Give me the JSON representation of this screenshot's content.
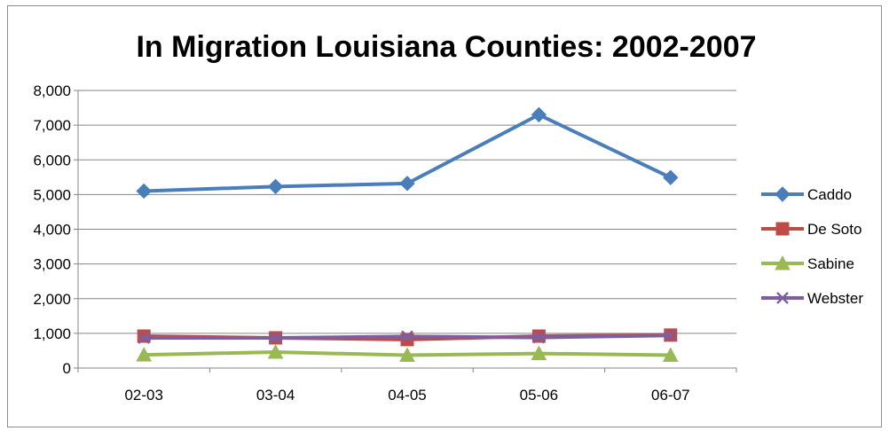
{
  "chart_data": {
    "type": "line",
    "title": "In Migration Louisiana Counties:  2002-2007",
    "xlabel": "",
    "ylabel": "",
    "categories": [
      "02-03",
      "03-04",
      "04-05",
      "05-06",
      "06-07"
    ],
    "ylim": [
      0,
      8000
    ],
    "yticks": [
      0,
      1000,
      2000,
      3000,
      4000,
      5000,
      6000,
      7000,
      8000
    ],
    "ytick_labels": [
      "0",
      "1,000",
      "2,000",
      "3,000",
      "4,000",
      "5,000",
      "6,000",
      "7,000",
      "8,000"
    ],
    "grid": "horizontal",
    "legend_position": "right",
    "series": [
      {
        "name": "Caddo",
        "values": [
          5100,
          5230,
          5320,
          7300,
          5490
        ],
        "color": "#4a7ebb",
        "marker": "diamond"
      },
      {
        "name": "De Soto",
        "values": [
          920,
          870,
          820,
          920,
          950
        ],
        "color": "#be4b48",
        "marker": "square"
      },
      {
        "name": "Sabine",
        "values": [
          380,
          460,
          370,
          420,
          370
        ],
        "color": "#98b954",
        "marker": "triangle"
      },
      {
        "name": "Webster",
        "values": [
          870,
          870,
          910,
          880,
          940
        ],
        "color": "#7d5fa0",
        "marker": "x"
      }
    ]
  }
}
